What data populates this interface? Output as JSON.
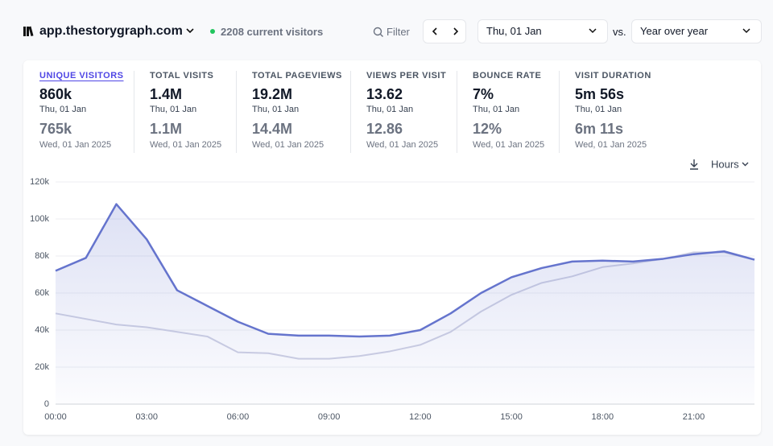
{
  "header": {
    "site": "app.thestorygraph.com",
    "visitors": "2208 current visitors",
    "filter": "Filter",
    "date": "Thu, 01 Jan",
    "vs": "vs.",
    "comparison": "Year over year"
  },
  "metrics": [
    {
      "label": "UNIQUE VISITORS",
      "value": "860k",
      "date": "Thu, 01 Jan",
      "compare_value": "765k",
      "compare_date": "Wed, 01 Jan 2025"
    },
    {
      "label": "TOTAL VISITS",
      "value": "1.4M",
      "date": "Thu, 01 Jan",
      "compare_value": "1.1M",
      "compare_date": "Wed, 01 Jan 2025"
    },
    {
      "label": "TOTAL PAGEVIEWS",
      "value": "19.2M",
      "date": "Thu, 01 Jan",
      "compare_value": "14.4M",
      "compare_date": "Wed, 01 Jan 2025"
    },
    {
      "label": "VIEWS PER VISIT",
      "value": "13.62",
      "date": "Thu, 01 Jan",
      "compare_value": "12.86",
      "compare_date": "Wed, 01 Jan 2025"
    },
    {
      "label": "BOUNCE RATE",
      "value": "7%",
      "date": "Thu, 01 Jan",
      "compare_value": "12%",
      "compare_date": "Wed, 01 Jan 2025"
    },
    {
      "label": "VISIT DURATION",
      "value": "5m 56s",
      "date": "Thu, 01 Jan",
      "compare_value": "6m 11s",
      "compare_date": "Wed, 01 Jan 2025"
    }
  ],
  "interval": "Hours",
  "chart_data": {
    "type": "line",
    "categories": [
      "00:00",
      null,
      null,
      "03:00",
      null,
      null,
      "06:00",
      null,
      null,
      "09:00",
      null,
      null,
      "12:00",
      null,
      null,
      "15:00",
      null,
      null,
      "18:00",
      null,
      null,
      "21:00",
      null,
      null
    ],
    "series": [
      {
        "color": "#cfd1e3",
        "values": [
          49000,
          46000,
          43000,
          41500,
          39000,
          36500,
          28000,
          27500,
          24500,
          24500,
          26000,
          28500,
          32000,
          39000,
          50000,
          59000,
          65500,
          69000,
          74000,
          76000,
          78500,
          82000,
          82000,
          78000
        ]
      },
      {
        "color": "#6574cd",
        "values": [
          72000,
          79000,
          108000,
          89000,
          61500,
          53000,
          44500,
          38000,
          37000,
          37000,
          36500,
          37000,
          40000,
          49000,
          60000,
          68500,
          73500,
          77000,
          77500,
          77000,
          78500,
          81000,
          82500,
          78000
        ]
      }
    ],
    "ylim": [
      0,
      120000
    ],
    "yticks": [
      0,
      {
        "value": 20000,
        "label": "20k"
      },
      {
        "value": 40000,
        "label": "40k"
      },
      {
        "value": 60000,
        "label": "60k"
      },
      {
        "value": 80000,
        "label": "80k"
      },
      {
        "value": 100000,
        "label": "100k"
      },
      {
        "value": 120000,
        "label": "120k"
      }
    ],
    "grid": true
  }
}
